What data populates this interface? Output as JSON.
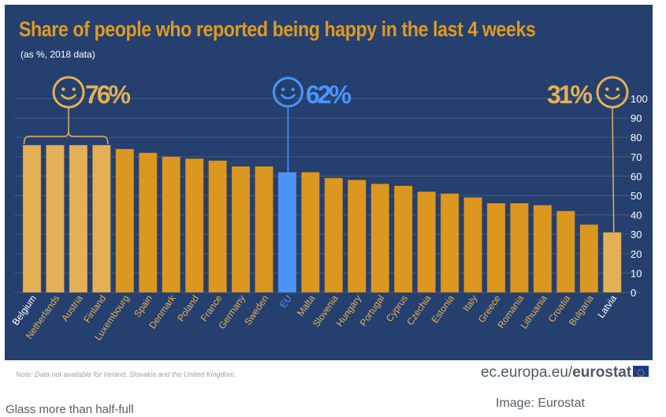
{
  "header": {
    "title": "Share of people who reported being happy in the last 4 weeks",
    "subtitle": "(as %, 2018 data)"
  },
  "annotations": {
    "top": {
      "value": "76%",
      "icon": "smiley-icon",
      "color": "#e3b055"
    },
    "eu": {
      "value": "62%",
      "icon": "smiley-icon",
      "color": "#4a95fb"
    },
    "bottom": {
      "value": "31%",
      "icon": "smiley-icon",
      "color": "#e3b055"
    }
  },
  "footer": {
    "note": "Note: Data not available for Ireland, Slovakia and the United Kingdom.",
    "site_prefix": "ec.europa.eu/",
    "site_brand": "eurostat",
    "flag_icon": "eu-flag-icon",
    "caption": "Glass more than half-full",
    "credit": "Image: Eurostat"
  },
  "colors": {
    "background": "#253f6e",
    "bar": "#db971f",
    "highlight_bar": "#e3b055",
    "eu_bar": "#4a95fb",
    "title": "#dd9a21",
    "gridline": "#40577f"
  },
  "chart_data": {
    "type": "bar",
    "title": "Share of people who reported being happy in the last 4 weeks",
    "subtitle": "(as %, 2018 data)",
    "xlabel": "",
    "ylabel": "",
    "ylim": [
      0,
      100
    ],
    "yticks": [
      0,
      10,
      20,
      30,
      40,
      50,
      60,
      70,
      80,
      90,
      100
    ],
    "y_axis_side": "right",
    "grid": true,
    "categories": [
      "Belgium",
      "Netherlands",
      "Austria",
      "Finland",
      "Luxembourg",
      "Spain",
      "Denmark",
      "Poland",
      "France",
      "Germany",
      "Sweden",
      "EU",
      "Malta",
      "Slovenia",
      "Hungary",
      "Portugal",
      "Cyprus",
      "Czechia",
      "Estonia",
      "Italy",
      "Greece",
      "Romania",
      "Lithuania",
      "Croatia",
      "Bulgaria",
      "Latvia"
    ],
    "values": [
      76,
      76,
      76,
      76,
      74,
      72,
      70,
      69,
      68,
      65,
      65,
      62,
      62,
      59,
      58,
      56,
      55,
      52,
      51,
      49,
      46,
      46,
      45,
      42,
      35,
      31
    ],
    "highlight": [
      "top",
      "top",
      "top",
      "top",
      "normal",
      "normal",
      "normal",
      "normal",
      "normal",
      "normal",
      "normal",
      "eu",
      "normal",
      "normal",
      "normal",
      "normal",
      "normal",
      "normal",
      "normal",
      "normal",
      "normal",
      "normal",
      "normal",
      "normal",
      "normal",
      "bottom"
    ]
  }
}
